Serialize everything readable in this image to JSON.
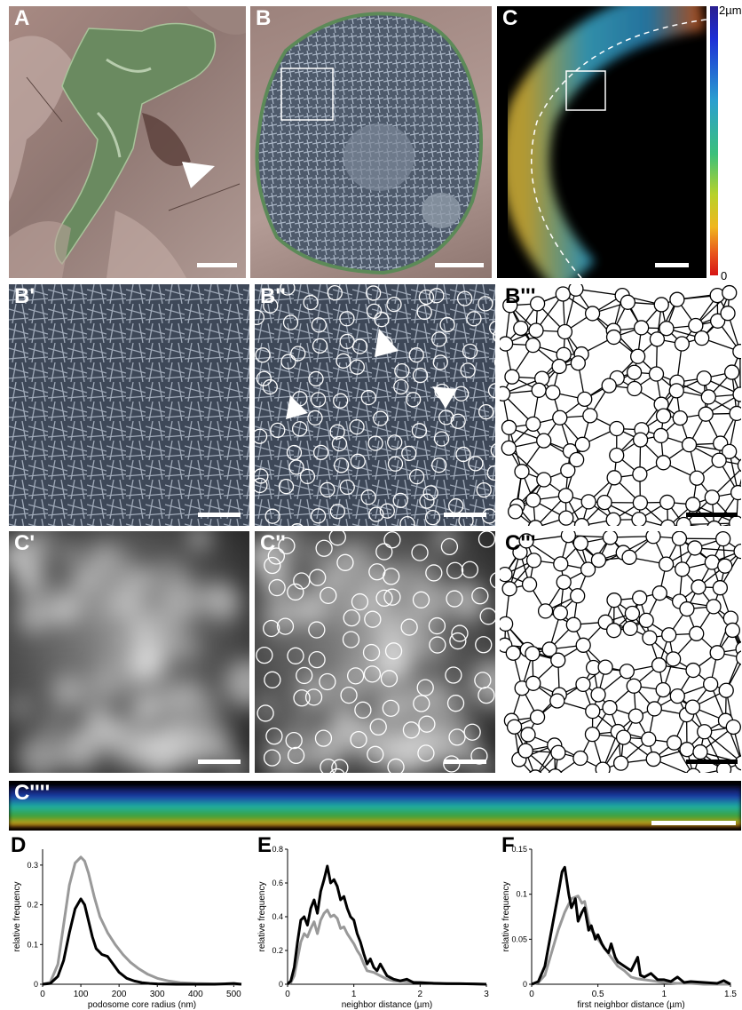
{
  "figure": {
    "panel_labels": {
      "A": "A",
      "B": "B",
      "C": "C",
      "B1": "B'",
      "B2": "B''",
      "B3": "B'''",
      "C1": "C'",
      "C2": "C''",
      "C3": "C'''",
      "C4": "C''''",
      "D": "D",
      "E": "E",
      "F": "F"
    },
    "colorbar": {
      "top_label": "2µm",
      "bottom_label": "0"
    }
  },
  "chart_data": [
    {
      "panel": "D",
      "type": "line",
      "xlabel": "podosome core radius (nm)",
      "ylabel": "relative frequency",
      "xlim": [
        0,
        520
      ],
      "ylim": [
        0,
        0.34
      ],
      "xticks": [
        0,
        100,
        200,
        300,
        400,
        500
      ],
      "yticks": [
        0,
        0.1,
        0.2,
        0.3
      ],
      "ytick_labels": [
        "0",
        "0.1",
        "0.2",
        "0.3"
      ],
      "series": [
        {
          "color": "#000000",
          "x": [
            0,
            20,
            40,
            55,
            70,
            85,
            100,
            110,
            120,
            130,
            140,
            155,
            170,
            185,
            200,
            220,
            240,
            260,
            280,
            300,
            350,
            400,
            450,
            500,
            520
          ],
          "y": [
            0,
            0.002,
            0.02,
            0.06,
            0.13,
            0.19,
            0.215,
            0.2,
            0.16,
            0.12,
            0.09,
            0.075,
            0.07,
            0.05,
            0.03,
            0.015,
            0.008,
            0.004,
            0.002,
            0.001,
            0,
            0,
            0,
            0.002,
            0
          ]
        },
        {
          "color": "#999999",
          "x": [
            0,
            20,
            40,
            55,
            70,
            85,
            100,
            110,
            120,
            135,
            150,
            170,
            190,
            210,
            230,
            250,
            275,
            300,
            330,
            360,
            400,
            450,
            500,
            520
          ],
          "y": [
            0,
            0.005,
            0.05,
            0.15,
            0.25,
            0.305,
            0.32,
            0.31,
            0.28,
            0.22,
            0.17,
            0.13,
            0.1,
            0.075,
            0.055,
            0.04,
            0.025,
            0.015,
            0.008,
            0.004,
            0.002,
            0.001,
            0,
            0
          ]
        }
      ]
    },
    {
      "panel": "E",
      "type": "line",
      "xlabel": "neighbor distance (µm)",
      "ylabel": "relative frequency",
      "xlim": [
        0,
        3
      ],
      "ylim": [
        0,
        0.8
      ],
      "xticks": [
        0,
        1,
        2,
        3
      ],
      "yticks": [
        0,
        0.2,
        0.4,
        0.6,
        0.8
      ],
      "ytick_labels": [
        "0",
        "0.2",
        "0.4",
        "0.6",
        "0.8"
      ],
      "series": [
        {
          "color": "#000000",
          "x": [
            0,
            0.05,
            0.1,
            0.15,
            0.2,
            0.25,
            0.3,
            0.35,
            0.4,
            0.45,
            0.5,
            0.55,
            0.6,
            0.65,
            0.7,
            0.75,
            0.8,
            0.85,
            0.9,
            0.95,
            1.0,
            1.05,
            1.1,
            1.15,
            1.2,
            1.25,
            1.3,
            1.35,
            1.4,
            1.5,
            1.6,
            1.7,
            1.8,
            1.9,
            2.0,
            2.2,
            2.4,
            2.6,
            2.8,
            3.0
          ],
          "y": [
            0,
            0.02,
            0.1,
            0.25,
            0.38,
            0.4,
            0.35,
            0.45,
            0.5,
            0.42,
            0.55,
            0.62,
            0.7,
            0.6,
            0.62,
            0.58,
            0.5,
            0.52,
            0.45,
            0.4,
            0.38,
            0.3,
            0.25,
            0.18,
            0.12,
            0.15,
            0.1,
            0.08,
            0.12,
            0.05,
            0.03,
            0.02,
            0.03,
            0.01,
            0.01,
            0.005,
            0.003,
            0.003,
            0.002,
            0
          ]
        },
        {
          "color": "#999999",
          "x": [
            0,
            0.05,
            0.1,
            0.15,
            0.2,
            0.25,
            0.3,
            0.35,
            0.4,
            0.45,
            0.5,
            0.55,
            0.6,
            0.65,
            0.7,
            0.75,
            0.8,
            0.85,
            0.9,
            0.95,
            1.0,
            1.05,
            1.1,
            1.15,
            1.2,
            1.3,
            1.4,
            1.5,
            1.6,
            1.8,
            2.0,
            2.2,
            2.4,
            2.6,
            2.8,
            3.0
          ],
          "y": [
            0,
            0.01,
            0.05,
            0.15,
            0.25,
            0.3,
            0.28,
            0.33,
            0.37,
            0.3,
            0.38,
            0.42,
            0.44,
            0.4,
            0.41,
            0.39,
            0.33,
            0.34,
            0.3,
            0.27,
            0.24,
            0.2,
            0.17,
            0.12,
            0.08,
            0.07,
            0.05,
            0.03,
            0.02,
            0.015,
            0.01,
            0.008,
            0.005,
            0.003,
            0.002,
            0
          ]
        }
      ]
    },
    {
      "panel": "F",
      "type": "line",
      "xlabel": "first neighbor distance (µm)",
      "ylabel": "relative frequency",
      "xlim": [
        0,
        1.5
      ],
      "ylim": [
        0,
        0.15
      ],
      "xticks": [
        0,
        0.5,
        1,
        1.5
      ],
      "xtick_labels": [
        "0",
        "0.5",
        "1",
        "1.5"
      ],
      "yticks": [
        0,
        0.05,
        0.1,
        0.15
      ],
      "ytick_labels": [
        "0",
        "0.05",
        "0.1",
        "0.15"
      ],
      "series": [
        {
          "color": "#000000",
          "x": [
            0,
            0.05,
            0.1,
            0.15,
            0.2,
            0.23,
            0.25,
            0.28,
            0.3,
            0.33,
            0.35,
            0.38,
            0.4,
            0.43,
            0.45,
            0.48,
            0.5,
            0.53,
            0.55,
            0.58,
            0.6,
            0.63,
            0.65,
            0.7,
            0.75,
            0.8,
            0.82,
            0.85,
            0.9,
            0.95,
            1.0,
            1.05,
            1.1,
            1.15,
            1.2,
            1.3,
            1.4,
            1.45,
            1.5
          ],
          "y": [
            0,
            0.003,
            0.02,
            0.06,
            0.1,
            0.125,
            0.13,
            0.1,
            0.085,
            0.095,
            0.07,
            0.08,
            0.085,
            0.06,
            0.065,
            0.05,
            0.055,
            0.045,
            0.04,
            0.035,
            0.045,
            0.03,
            0.025,
            0.02,
            0.015,
            0.03,
            0.01,
            0.008,
            0.012,
            0.005,
            0.005,
            0.003,
            0.008,
            0.002,
            0.003,
            0.002,
            0.001,
            0.004,
            0
          ]
        },
        {
          "color": "#999999",
          "x": [
            0,
            0.05,
            0.1,
            0.15,
            0.2,
            0.25,
            0.3,
            0.35,
            0.38,
            0.4,
            0.43,
            0.45,
            0.48,
            0.5,
            0.55,
            0.6,
            0.65,
            0.7,
            0.75,
            0.8,
            0.9,
            1.0,
            1.1,
            1.2,
            1.3,
            1.4,
            1.5
          ],
          "y": [
            0,
            0.002,
            0.01,
            0.035,
            0.06,
            0.08,
            0.095,
            0.098,
            0.09,
            0.092,
            0.07,
            0.06,
            0.055,
            0.05,
            0.04,
            0.03,
            0.02,
            0.015,
            0.008,
            0.006,
            0.004,
            0.002,
            0.001,
            0.001,
            0,
            0,
            0
          ]
        }
      ]
    }
  ]
}
